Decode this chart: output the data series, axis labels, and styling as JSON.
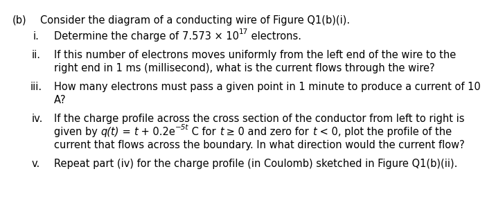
{
  "bg_color": "#ffffff",
  "label_b": "(b)",
  "title_text": "Consider the diagram of a conducting wire of Figure Q1(b)(i).",
  "items": [
    {
      "label": "i.",
      "lines": [
        [
          "Determine the charge of ",
          "7.573 × 10",
          "17",
          " electrons."
        ]
      ]
    },
    {
      "label": "ii.",
      "lines": [
        [
          "If this number of electrons moves uniformly from the left end of the wire to the"
        ],
        [
          "right end in 1 ms (millisecond), what is the current flows through the wire?"
        ]
      ]
    },
    {
      "label": "iii.",
      "lines": [
        [
          "How many electrons must pass a given point in 1 minute to produce a current of 10"
        ],
        [
          "A?"
        ]
      ]
    },
    {
      "label": "iv.",
      "lines": [
        [
          "If the charge profile across the cross section of the conductor from left to right is"
        ],
        [
          "given by ",
          "q(t)",
          " = ",
          "t",
          " + 0.2e",
          "−5",
          "t",
          " C for ",
          "t",
          " ≥ 0 and zero for ",
          "t",
          " < 0, plot the profile of the"
        ],
        [
          "current that flows across the boundary. In what direction would the current flow?"
        ]
      ]
    },
    {
      "label": "v.",
      "lines": [
        [
          "Repeat part (iv) for the charge profile (in Coulomb) sketched in Figure Q1(b)(ii)."
        ]
      ]
    }
  ],
  "font_family": "DejaVu Sans",
  "font_size": 10.5,
  "text_color": "#000000"
}
